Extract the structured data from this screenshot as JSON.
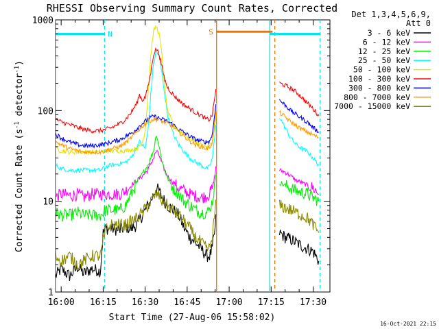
{
  "chart_data": {
    "type": "line",
    "title": "RHESSI Observing Summary Count Rates, Corrected",
    "xlabel": "Start Time (27-Aug-06 15:58:02)",
    "ylabel_main": "Corrected Count Rate (s",
    "ylabel_sup1": "-1",
    "ylabel_mid": " detector",
    "ylabel_sup2": "-1",
    "ylabel_end": ")",
    "timestamp": "16-Oct-2021 22:15",
    "y_scale": "log",
    "ylim": [
      1,
      1000
    ],
    "xlim_minutes": [
      0,
      98
    ],
    "x_ticks": [
      {
        "label": "16:00",
        "min": 2
      },
      {
        "label": "16:15",
        "min": 17
      },
      {
        "label": "16:30",
        "min": 32
      },
      {
        "label": "16:45",
        "min": 47
      },
      {
        "label": "17:00",
        "min": 62
      },
      {
        "label": "17:15",
        "min": 77
      },
      {
        "label": "17:30",
        "min": 92
      }
    ],
    "y_ticks": [
      {
        "label": "1",
        "value": 1
      },
      {
        "label": "10",
        "value": 10
      },
      {
        "label": "100",
        "value": 100
      },
      {
        "label": "1000",
        "value": 1000
      }
    ],
    "legend_header": [
      "Det 1,3,4,5,6,9,",
      "Att 0"
    ],
    "legend_placement": "right",
    "flags": [
      {
        "label": "N",
        "color": "#00e5ee",
        "start_min": 0,
        "end_min": 17.5,
        "level": 700,
        "label_min": 19.5
      },
      {
        "label": "S",
        "color": "#ee7600",
        "start_min": 57.5,
        "end_min": 77.5,
        "level": 740,
        "label_min": 55.5
      },
      {
        "label": "",
        "color": "#00e5ee",
        "start_min": 76.5,
        "end_min": 94.5,
        "level": 700,
        "label_min": 0
      }
    ],
    "markers": [
      {
        "min": 0,
        "color": "#00e5ee",
        "style": "solid"
      },
      {
        "min": 17.5,
        "color": "#00e5ee",
        "style": "dash"
      },
      {
        "min": 57.5,
        "color": "#ee7600",
        "style": "solid"
      },
      {
        "min": 76.5,
        "color": "#00e5ee",
        "style": "solid"
      },
      {
        "min": 78.3,
        "color": "#ee7600",
        "style": "dash"
      },
      {
        "min": 94.5,
        "color": "#00e5ee",
        "style": "dash"
      }
    ],
    "series": [
      {
        "name": "3 - 6 keV",
        "color": "#000000",
        "x": [
          0,
          2,
          5,
          8,
          10,
          13,
          16,
          17,
          18,
          20,
          23,
          25,
          27,
          29,
          31,
          33,
          34,
          35,
          36,
          37,
          38,
          39,
          40,
          42,
          44,
          46,
          48,
          50,
          52,
          54,
          55,
          56,
          57,
          57.5,
          80,
          82,
          84,
          86,
          88,
          90,
          92,
          94
        ],
        "y": [
          1.5,
          1.8,
          1.5,
          1.9,
          1.6,
          1.8,
          1.7,
          4.5,
          5,
          5,
          4.8,
          5.2,
          5,
          5.5,
          7,
          9,
          10,
          12,
          14,
          13,
          11,
          10,
          9,
          8,
          7,
          5,
          4,
          3.5,
          3,
          2.5,
          2.5,
          3,
          5,
          8,
          4.5,
          4,
          3.8,
          3.5,
          3.2,
          3,
          2.8,
          2.2
        ]
      },
      {
        "name": "6 - 12 keV",
        "color": "#ff00ff",
        "x": [
          0,
          2,
          5,
          8,
          10,
          13,
          16,
          18,
          20,
          23,
          25,
          27,
          29,
          31,
          33,
          34,
          35,
          36,
          37,
          38,
          39,
          40,
          42,
          44,
          46,
          48,
          50,
          52,
          54,
          55,
          56,
          57,
          57.5,
          80,
          82,
          84,
          86,
          88,
          90,
          92,
          94
        ],
        "y": [
          11,
          12,
          11.5,
          12,
          11,
          12,
          12,
          12,
          12,
          12,
          13,
          15,
          17,
          19,
          22,
          26,
          30,
          36,
          32,
          26,
          22,
          19,
          16,
          14,
          13,
          12,
          11.5,
          11,
          11.5,
          12,
          14,
          20,
          30,
          22,
          21,
          19,
          17,
          16,
          15,
          14,
          12
        ]
      },
      {
        "name": "12 - 25 keV",
        "color": "#00ee00",
        "x": [
          0,
          2,
          5,
          8,
          10,
          13,
          16,
          18,
          20,
          23,
          25,
          27,
          29,
          31,
          33,
          34,
          35,
          36,
          37,
          38,
          39,
          40,
          42,
          44,
          46,
          48,
          50,
          52,
          54,
          55,
          56,
          57,
          57.5,
          80,
          82,
          84,
          86,
          88,
          90,
          92,
          94
        ],
        "y": [
          7.5,
          7,
          7,
          7.5,
          7,
          7,
          7,
          8,
          8,
          8,
          9,
          12,
          16,
          20,
          25,
          30,
          36,
          55,
          40,
          28,
          22,
          18,
          14,
          12,
          10,
          9,
          8,
          7.5,
          7.5,
          8,
          10,
          16,
          25,
          16,
          15,
          14,
          13,
          12.5,
          12,
          11,
          10
        ]
      },
      {
        "name": "25 - 50 keV",
        "color": "#00ffff",
        "x": [
          0,
          2,
          5,
          8,
          10,
          13,
          16,
          18,
          20,
          23,
          25,
          27,
          29,
          30,
          31,
          32,
          33,
          34,
          35,
          36,
          37,
          38,
          39,
          40,
          42,
          44,
          46,
          48,
          50,
          52,
          54,
          55,
          56,
          57,
          57.5,
          80,
          82,
          84,
          86,
          88,
          90,
          92,
          94
        ],
        "y": [
          25,
          23,
          22,
          22,
          22,
          22,
          22,
          24,
          25,
          26,
          27,
          30,
          40,
          45,
          42,
          38,
          60,
          150,
          330,
          450,
          400,
          260,
          150,
          90,
          55,
          42,
          35,
          30,
          27,
          25,
          23,
          24,
          30,
          55,
          90,
          85,
          65,
          50,
          42,
          38,
          35,
          30,
          25
        ]
      },
      {
        "name": "50 - 100 keV",
        "color": "#e6e600",
        "x": [
          0,
          2,
          5,
          8,
          10,
          13,
          16,
          18,
          20,
          23,
          25,
          27,
          29,
          30,
          31,
          32,
          33,
          34,
          35,
          36,
          37,
          38,
          39,
          40,
          42,
          44,
          46,
          48,
          50,
          52,
          54,
          55,
          56,
          57,
          57.5
        ],
        "y": [
          38,
          36,
          35,
          35,
          35,
          35,
          35,
          36,
          36,
          36,
          36,
          37,
          38,
          40,
          45,
          60,
          150,
          400,
          750,
          850,
          700,
          400,
          180,
          100,
          70,
          60,
          55,
          50,
          45,
          42,
          40,
          40,
          45,
          70,
          120
        ]
      },
      {
        "name": "100 - 300 keV",
        "color": "#ff0000",
        "x": [
          0,
          2,
          5,
          8,
          10,
          13,
          16,
          18,
          20,
          23,
          25,
          27,
          29,
          30,
          31,
          32,
          33,
          34,
          35,
          36,
          37,
          38,
          39,
          40,
          42,
          44,
          46,
          48,
          50,
          52,
          54,
          55,
          56,
          57,
          57.5,
          80,
          82,
          84,
          86,
          88,
          90,
          92,
          94
        ],
        "y": [
          80,
          75,
          70,
          65,
          62,
          60,
          60,
          62,
          65,
          72,
          80,
          95,
          120,
          150,
          130,
          140,
          180,
          260,
          420,
          480,
          420,
          300,
          220,
          180,
          150,
          130,
          115,
          105,
          95,
          88,
          80,
          80,
          90,
          150,
          200,
          200,
          190,
          175,
          160,
          140,
          120,
          105,
          88
        ]
      },
      {
        "name": "300 - 800 keV",
        "color": "#0000ff",
        "x": [
          0,
          2,
          5,
          8,
          10,
          13,
          16,
          18,
          20,
          23,
          25,
          27,
          29,
          31,
          33,
          34,
          35,
          36,
          37,
          38,
          39,
          40,
          42,
          44,
          46,
          48,
          50,
          52,
          54,
          55,
          56,
          57,
          57.5,
          80,
          82,
          84,
          86,
          88,
          90,
          92,
          94
        ],
        "y": [
          55,
          50,
          45,
          42,
          41,
          41,
          42,
          43,
          45,
          48,
          52,
          56,
          63,
          72,
          80,
          84,
          86,
          85,
          82,
          80,
          78,
          76,
          70,
          62,
          57,
          52,
          48,
          46,
          45,
          46,
          55,
          100,
          150,
          130,
          115,
          100,
          90,
          82,
          74,
          65,
          58
        ]
      },
      {
        "name": "800 - 7000 keV",
        "color": "#ff9900",
        "x": [
          0,
          2,
          5,
          8,
          10,
          13,
          16,
          18,
          20,
          23,
          25,
          27,
          29,
          31,
          33,
          34,
          35,
          36,
          37,
          38,
          39,
          40,
          42,
          44,
          46,
          48,
          50,
          52,
          54,
          55,
          56,
          57,
          57.5,
          80,
          82,
          84,
          86,
          88,
          90,
          92,
          94
        ],
        "y": [
          45,
          42,
          38,
          36,
          35,
          35,
          35,
          36,
          38,
          40,
          44,
          50,
          58,
          67,
          75,
          78,
          80,
          80,
          78,
          76,
          74,
          72,
          66,
          58,
          52,
          46,
          42,
          40,
          38,
          39,
          45,
          80,
          120,
          95,
          85,
          75,
          68,
          62,
          58,
          54,
          50
        ]
      },
      {
        "name": "7000 - 15000 keV",
        "color": "#8b8b00",
        "x": [
          0,
          2,
          5,
          8,
          10,
          13,
          16,
          18,
          20,
          23,
          25,
          27,
          29,
          31,
          33,
          34,
          35,
          36,
          37,
          38,
          39,
          40,
          42,
          44,
          46,
          48,
          50,
          52,
          54,
          55,
          56,
          57,
          57.5,
          80,
          82,
          84,
          86,
          88,
          90,
          92,
          94
        ],
        "y": [
          2.5,
          2.2,
          2.5,
          2,
          2.2,
          2.5,
          2.5,
          5,
          5.5,
          5.5,
          5.5,
          6,
          6.5,
          7.5,
          9,
          10,
          11,
          12,
          11.5,
          10,
          9.5,
          9,
          8,
          7,
          6,
          5,
          4,
          3.5,
          3,
          3,
          4,
          8,
          12,
          9,
          8.5,
          8,
          7.5,
          7,
          6.5,
          5.5,
          4.5
        ]
      }
    ]
  }
}
